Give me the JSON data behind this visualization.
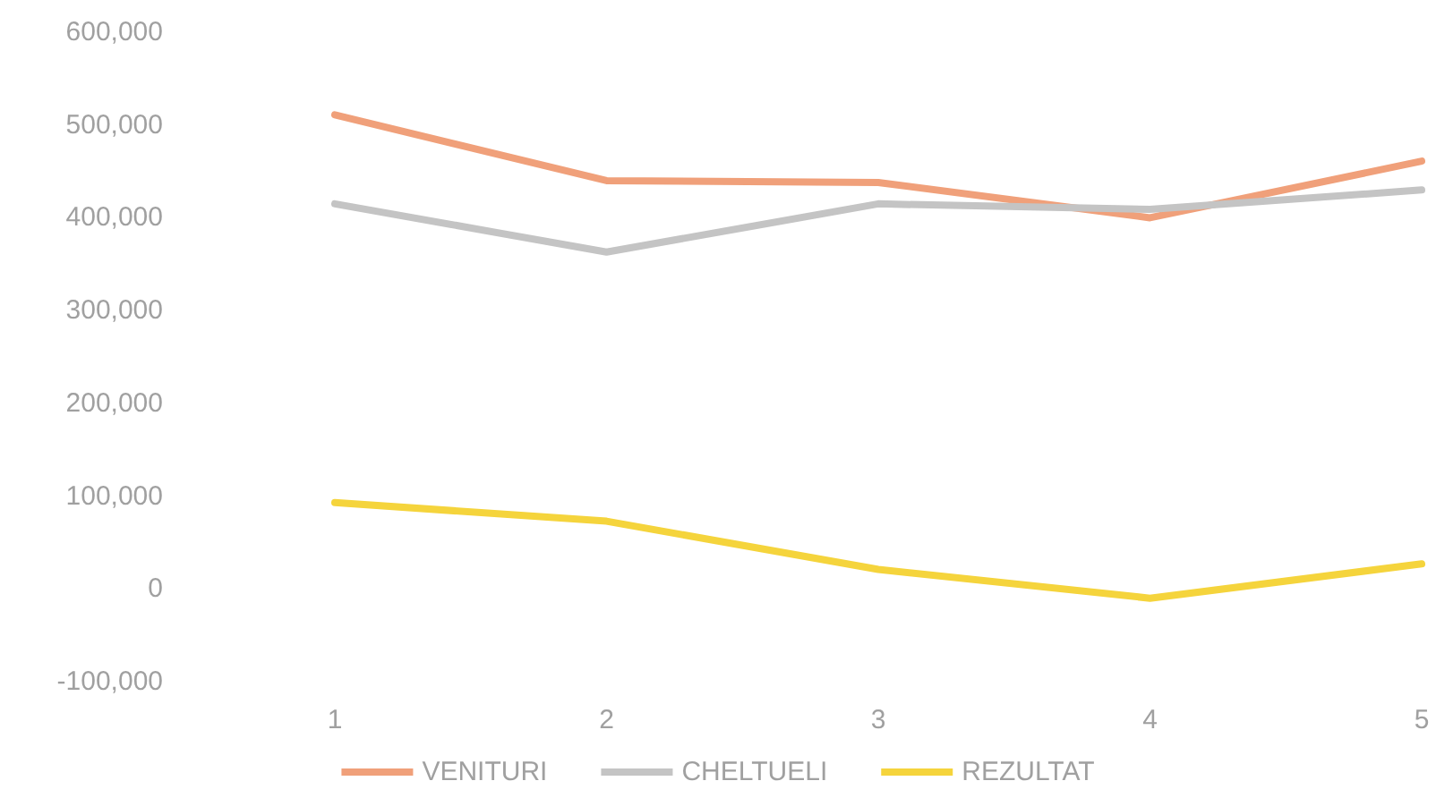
{
  "chart_data": {
    "type": "line",
    "categories": [
      "1",
      "2",
      "3",
      "4",
      "5"
    ],
    "series": [
      {
        "name": "VENITURI",
        "color": "#f0a07a",
        "values": [
          511000,
          440000,
          438000,
          400000,
          461000
        ]
      },
      {
        "name": "CHELTUELI",
        "color": "#c4c4c4",
        "values": [
          415000,
          363000,
          415000,
          409000,
          430000
        ]
      },
      {
        "name": "REZULTAT",
        "color": "#f5d43c",
        "values": [
          93000,
          73000,
          21000,
          -10000,
          27000
        ]
      }
    ],
    "ylim": [
      -100000,
      600000
    ],
    "yticks": [
      {
        "value": -100000,
        "label": "-100,000"
      },
      0,
      {
        "value": 100000,
        "label": "100,000"
      },
      {
        "value": 200000,
        "label": "200,000"
      },
      {
        "value": 300000,
        "label": "300,000"
      },
      {
        "value": 400000,
        "label": "400,000"
      },
      {
        "value": 500000,
        "label": "500,000"
      },
      {
        "value": 600000,
        "label": "600,000"
      }
    ],
    "grid": false,
    "legend": "bottom",
    "marker": "none",
    "line_style": "solid"
  }
}
